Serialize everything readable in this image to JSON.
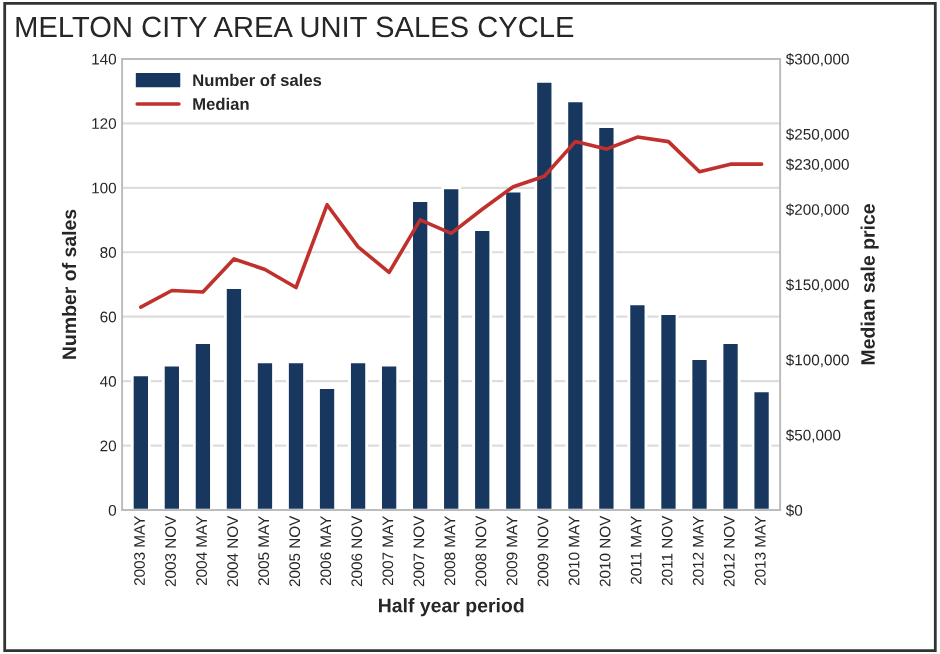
{
  "chart_data": {
    "type": "bar",
    "title": "MELTON CITY AREA UNIT SALES CYCLE",
    "xlabel": "Half year period",
    "ylabel": "Number of sales",
    "y2label": "Median sale price",
    "categories": [
      "2003 MAY",
      "2003 NOV",
      "2004 MAY",
      "2004 NOV",
      "2005 MAY",
      "2005 NOV",
      "2006 MAY",
      "2006 NOV",
      "2007 MAY",
      "2007 NOV",
      "2008 MAY",
      "2008 NOV",
      "2009 MAY",
      "2009 NOV",
      "2010 MAY",
      "2010 NOV",
      "2011 MAY",
      "2011 NOV",
      "2012 MAY",
      "2012 NOV",
      "2013 MAY"
    ],
    "series": [
      {
        "name": "Number of sales",
        "color": "#17375e",
        "values": [
          42,
          45,
          52,
          69,
          46,
          46,
          38,
          46,
          45,
          96,
          100,
          87,
          99,
          133,
          127,
          119,
          64,
          61,
          47,
          52,
          37
        ]
      },
      {
        "name": "Median",
        "type": "line",
        "axis": "y2",
        "color": "#c0302c",
        "values": [
          135000,
          146000,
          145000,
          167000,
          160000,
          148000,
          203000,
          175000,
          158000,
          193000,
          184000,
          200000,
          215000,
          222000,
          245000,
          240000,
          248000,
          245000,
          225000,
          230000,
          230000
        ]
      }
    ],
    "ylim": [
      0,
      140
    ],
    "yticks": [
      0,
      20,
      40,
      60,
      80,
      100,
      120,
      140
    ],
    "y2lim": [
      0,
      300000
    ],
    "y2ticks": [
      {
        "value": 0,
        "label": "$0"
      },
      {
        "value": 50000,
        "label": "$50,000"
      },
      {
        "value": 100000,
        "label": "$100,000"
      },
      {
        "value": 150000,
        "label": "$150,000"
      },
      {
        "value": 200000,
        "label": "$200,000"
      },
      {
        "value": 230000,
        "label": "$230,000"
      },
      {
        "value": 250000,
        "label": "$250,000"
      },
      {
        "value": 300000,
        "label": "$300,000"
      }
    ],
    "grid": "y",
    "legend": "top left"
  }
}
